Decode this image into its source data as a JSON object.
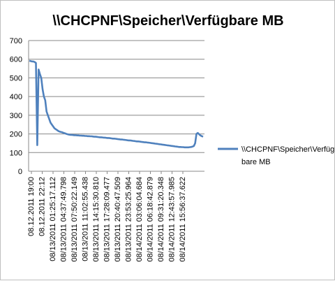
{
  "chart_data": {
    "type": "line",
    "title": "\\\\CHCPNF\\Speicher\\Verfügbare MB",
    "xlabel": "",
    "ylabel": "",
    "ylim": [
      0,
      700
    ],
    "y_ticks": [
      "0",
      "100",
      "200",
      "300",
      "400",
      "500",
      "600",
      "700"
    ],
    "grid": true,
    "legend_position": "right",
    "x_tick_labels": [
      "08.12.2011 19:00",
      "08.12.2011 22:12",
      "08/13/2011 01:25:17.112",
      "08/13/2011 04:37:49.798",
      "08/13/2011 07:50:22.149",
      "08/13/2011 11:02:55.438",
      "08/13/2011 14:15:30.810",
      "08/13/2011 17:28:09.477",
      "08/13/2011 20:40:47.509",
      "08/13/2011 23:53:25.964",
      "08/14/2011 03:06:04.684",
      "08/14/2011 06:18:42.879",
      "08/14/2011 09:31:20.348",
      "08/14/2011 12:43:57.985",
      "08/14/2011 15:56:37.622"
    ],
    "series": [
      {
        "name": "\\\\CHCPNF\\Speicher\\Verfügbare MB",
        "color": "#4f81bd",
        "values": [
          592,
          590,
          588,
          588,
          585,
          580,
          140,
          545,
          520,
          500,
          440,
          400,
          380,
          320,
          300,
          280,
          260,
          250,
          240,
          230,
          225,
          220,
          215,
          212,
          210,
          208,
          205,
          203,
          200,
          198,
          196,
          195,
          195,
          194,
          193,
          193,
          192,
          192,
          191,
          191,
          190,
          190,
          189,
          189,
          188,
          188,
          187,
          187,
          186,
          185,
          185,
          184,
          183,
          182,
          182,
          181,
          180,
          180,
          179,
          178,
          178,
          177,
          176,
          175,
          175,
          174,
          173,
          172,
          171,
          170,
          170,
          169,
          168,
          167,
          166,
          165,
          165,
          164,
          163,
          162,
          161,
          160,
          160,
          159,
          158,
          157,
          156,
          155,
          155,
          154,
          153,
          152,
          151,
          150,
          149,
          148,
          147,
          146,
          145,
          144,
          143,
          142,
          141,
          140,
          139,
          138,
          137,
          136,
          135,
          134,
          133,
          132,
          131,
          130,
          130,
          129,
          129,
          128,
          128,
          128,
          128,
          129,
          130,
          132,
          135,
          150,
          200,
          205,
          198,
          192,
          188,
          185
        ]
      }
    ]
  }
}
